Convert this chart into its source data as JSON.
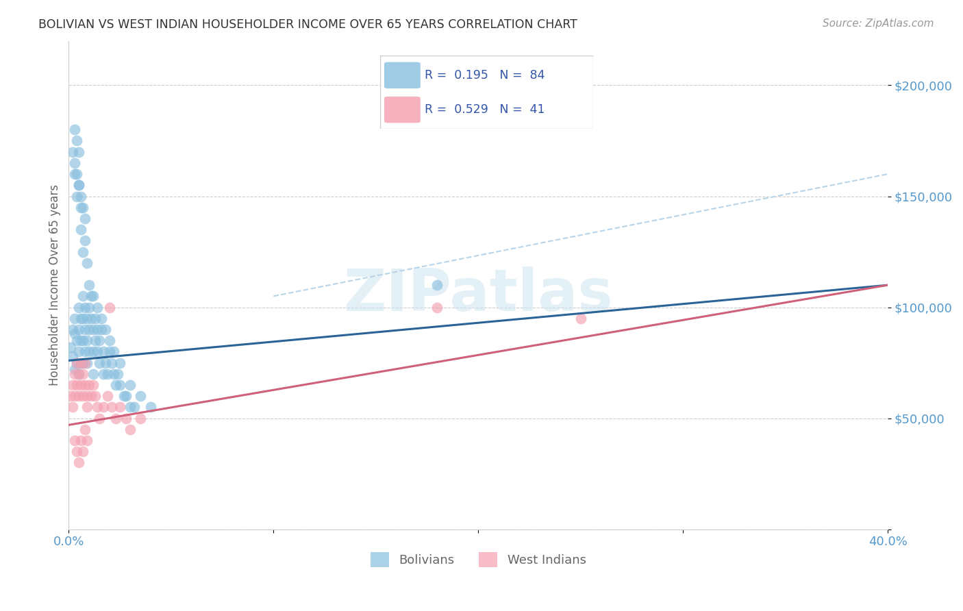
{
  "title": "BOLIVIAN VS WEST INDIAN HOUSEHOLDER INCOME OVER 65 YEARS CORRELATION CHART",
  "source": "Source: ZipAtlas.com",
  "ylabel": "Householder Income Over 65 years",
  "xlim": [
    0.0,
    0.4
  ],
  "ylim": [
    0,
    220000
  ],
  "yticks": [
    0,
    50000,
    100000,
    150000,
    200000
  ],
  "ytick_labels": [
    "",
    "$50,000",
    "$100,000",
    "$150,000",
    "$200,000"
  ],
  "xticks": [
    0.0,
    0.1,
    0.2,
    0.3,
    0.4
  ],
  "xtick_labels": [
    "0.0%",
    "",
    "",
    "",
    "40.0%"
  ],
  "watermark": "ZIPatlas",
  "blue_color": "#89bfdf",
  "pink_color": "#f4a0b0",
  "blue_line_color": "#2a6496",
  "pink_line_color": "#d0607a",
  "blue_dash_color": "#b8d4e8",
  "title_color": "#333333",
  "axis_label_color": "#666666",
  "tick_label_color": "#5599cc",
  "blue_line_x0": 0.0,
  "blue_line_y0": 76000,
  "blue_line_x1": 0.4,
  "blue_line_y1": 110000,
  "pink_line_x0": 0.0,
  "pink_line_y0": 47000,
  "pink_line_x1": 0.4,
  "pink_line_y1": 110000,
  "dash_line_x0": 0.1,
  "dash_line_y0": 105000,
  "dash_line_x1": 0.4,
  "dash_line_y1": 160000,
  "bolivians_x": [
    0.001,
    0.002,
    0.002,
    0.003,
    0.003,
    0.003,
    0.004,
    0.004,
    0.005,
    0.005,
    0.005,
    0.005,
    0.006,
    0.006,
    0.006,
    0.007,
    0.007,
    0.007,
    0.007,
    0.008,
    0.008,
    0.008,
    0.009,
    0.009,
    0.009,
    0.01,
    0.01,
    0.01,
    0.011,
    0.011,
    0.012,
    0.012,
    0.012,
    0.013,
    0.013,
    0.014,
    0.014,
    0.015,
    0.015,
    0.016,
    0.017,
    0.017,
    0.018,
    0.019,
    0.02,
    0.021,
    0.022,
    0.023,
    0.024,
    0.025,
    0.027,
    0.028,
    0.03,
    0.032,
    0.005,
    0.006,
    0.003,
    0.004,
    0.006,
    0.007,
    0.008,
    0.009,
    0.002,
    0.003,
    0.004,
    0.005,
    0.006,
    0.007,
    0.008,
    0.003,
    0.004,
    0.005,
    0.01,
    0.012,
    0.014,
    0.016,
    0.018,
    0.02,
    0.022,
    0.025,
    0.03,
    0.035,
    0.04,
    0.18
  ],
  "bolivians_y": [
    82000,
    78000,
    90000,
    88000,
    72000,
    95000,
    85000,
    75000,
    90000,
    80000,
    100000,
    70000,
    95000,
    85000,
    75000,
    105000,
    95000,
    85000,
    75000,
    100000,
    90000,
    80000,
    95000,
    85000,
    75000,
    100000,
    90000,
    80000,
    95000,
    105000,
    90000,
    80000,
    70000,
    85000,
    95000,
    80000,
    90000,
    85000,
    75000,
    90000,
    80000,
    70000,
    75000,
    70000,
    80000,
    75000,
    70000,
    65000,
    70000,
    65000,
    60000,
    60000,
    55000,
    55000,
    155000,
    145000,
    160000,
    150000,
    135000,
    125000,
    130000,
    120000,
    170000,
    165000,
    160000,
    155000,
    150000,
    145000,
    140000,
    180000,
    175000,
    170000,
    110000,
    105000,
    100000,
    95000,
    90000,
    85000,
    80000,
    75000,
    65000,
    60000,
    55000,
    110000
  ],
  "west_indians_x": [
    0.001,
    0.002,
    0.002,
    0.003,
    0.003,
    0.004,
    0.004,
    0.005,
    0.005,
    0.006,
    0.006,
    0.007,
    0.007,
    0.008,
    0.008,
    0.009,
    0.009,
    0.01,
    0.011,
    0.012,
    0.013,
    0.014,
    0.015,
    0.017,
    0.019,
    0.021,
    0.023,
    0.025,
    0.028,
    0.03,
    0.003,
    0.004,
    0.005,
    0.006,
    0.007,
    0.008,
    0.009,
    0.18,
    0.25,
    0.02,
    0.035
  ],
  "west_indians_y": [
    60000,
    55000,
    65000,
    70000,
    60000,
    75000,
    65000,
    70000,
    60000,
    75000,
    65000,
    70000,
    60000,
    75000,
    65000,
    60000,
    55000,
    65000,
    60000,
    65000,
    60000,
    55000,
    50000,
    55000,
    60000,
    55000,
    50000,
    55000,
    50000,
    45000,
    40000,
    35000,
    30000,
    40000,
    35000,
    45000,
    40000,
    100000,
    95000,
    100000,
    50000
  ]
}
